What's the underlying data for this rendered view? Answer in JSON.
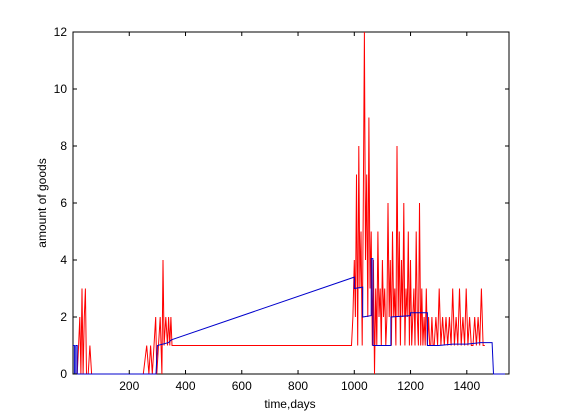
{
  "chart_data": {
    "type": "line",
    "title": "",
    "xlabel": "time,days",
    "ylabel": "amount of goods",
    "xlim": [
      0,
      1550
    ],
    "ylim": [
      0,
      12
    ],
    "xticks": [
      200,
      400,
      600,
      800,
      1000,
      1200,
      1400
    ],
    "yticks": [
      0,
      2,
      4,
      6,
      8,
      10,
      12
    ],
    "grid": false,
    "legend": "none",
    "series": [
      {
        "color": "#ff0000",
        "style": "spiky",
        "points": [
          [
            0,
            0
          ],
          [
            15,
            0
          ],
          [
            20,
            1
          ],
          [
            24,
            2
          ],
          [
            28,
            0
          ],
          [
            32,
            3
          ],
          [
            36,
            0
          ],
          [
            40,
            2
          ],
          [
            44,
            3
          ],
          [
            48,
            0
          ],
          [
            54,
            0
          ],
          [
            60,
            1
          ],
          [
            66,
            0
          ],
          [
            250,
            0
          ],
          [
            262,
            1
          ],
          [
            270,
            0
          ],
          [
            276,
            1
          ],
          [
            282,
            0
          ],
          [
            288,
            1
          ],
          [
            294,
            2
          ],
          [
            298,
            0
          ],
          [
            304,
            1
          ],
          [
            310,
            2
          ],
          [
            316,
            0
          ],
          [
            320,
            4
          ],
          [
            324,
            1
          ],
          [
            330,
            2
          ],
          [
            336,
            1
          ],
          [
            340,
            2
          ],
          [
            344,
            1
          ],
          [
            348,
            2
          ],
          [
            352,
            1
          ],
          [
            990,
            1
          ],
          [
            995,
            2
          ],
          [
            1000,
            4
          ],
          [
            1004,
            2
          ],
          [
            1008,
            7
          ],
          [
            1012,
            1
          ],
          [
            1016,
            8
          ],
          [
            1020,
            3
          ],
          [
            1024,
            5
          ],
          [
            1028,
            1
          ],
          [
            1032,
            6
          ],
          [
            1036,
            12
          ],
          [
            1040,
            4
          ],
          [
            1044,
            7
          ],
          [
            1048,
            2
          ],
          [
            1052,
            9
          ],
          [
            1056,
            3
          ],
          [
            1060,
            5
          ],
          [
            1064,
            1
          ],
          [
            1068,
            4
          ],
          [
            1072,
            0
          ],
          [
            1076,
            3
          ],
          [
            1080,
            1
          ],
          [
            1084,
            5
          ],
          [
            1088,
            2
          ],
          [
            1092,
            3
          ],
          [
            1096,
            1
          ],
          [
            1100,
            4
          ],
          [
            1104,
            2
          ],
          [
            1108,
            3
          ],
          [
            1112,
            1
          ],
          [
            1116,
            2
          ],
          [
            1120,
            6
          ],
          [
            1124,
            2
          ],
          [
            1128,
            4
          ],
          [
            1132,
            1
          ],
          [
            1136,
            5
          ],
          [
            1140,
            2
          ],
          [
            1144,
            3
          ],
          [
            1148,
            1
          ],
          [
            1152,
            8
          ],
          [
            1156,
            2
          ],
          [
            1160,
            5
          ],
          [
            1164,
            1
          ],
          [
            1168,
            4
          ],
          [
            1172,
            2
          ],
          [
            1176,
            6
          ],
          [
            1180,
            1
          ],
          [
            1184,
            3
          ],
          [
            1188,
            2
          ],
          [
            1192,
            5
          ],
          [
            1196,
            1
          ],
          [
            1200,
            4
          ],
          [
            1204,
            1
          ],
          [
            1208,
            2
          ],
          [
            1212,
            3
          ],
          [
            1216,
            1
          ],
          [
            1220,
            5
          ],
          [
            1224,
            2
          ],
          [
            1228,
            1
          ],
          [
            1232,
            6
          ],
          [
            1236,
            1
          ],
          [
            1240,
            3
          ],
          [
            1244,
            1
          ],
          [
            1248,
            2
          ],
          [
            1252,
            1
          ],
          [
            1256,
            3
          ],
          [
            1260,
            1
          ],
          [
            1264,
            2
          ],
          [
            1268,
            1
          ],
          [
            1272,
            1
          ],
          [
            1276,
            2
          ],
          [
            1280,
            1
          ],
          [
            1284,
            1
          ],
          [
            1290,
            2
          ],
          [
            1296,
            1
          ],
          [
            1302,
            3
          ],
          [
            1308,
            1
          ],
          [
            1314,
            2
          ],
          [
            1320,
            1
          ],
          [
            1326,
            2
          ],
          [
            1332,
            1
          ],
          [
            1338,
            2
          ],
          [
            1344,
            1
          ],
          [
            1350,
            3
          ],
          [
            1356,
            1
          ],
          [
            1362,
            2
          ],
          [
            1368,
            1
          ],
          [
            1374,
            3
          ],
          [
            1380,
            1
          ],
          [
            1386,
            2
          ],
          [
            1392,
            1
          ],
          [
            1398,
            3
          ],
          [
            1404,
            1
          ],
          [
            1410,
            2
          ],
          [
            1416,
            1
          ],
          [
            1422,
            1
          ],
          [
            1428,
            2
          ],
          [
            1434,
            1
          ],
          [
            1440,
            2
          ],
          [
            1446,
            1
          ],
          [
            1452,
            3
          ],
          [
            1458,
            1
          ],
          [
            1464,
            1
          ]
        ]
      },
      {
        "color": "#0000cc",
        "style": "line",
        "points": [
          [
            0,
            1
          ],
          [
            5,
            1
          ],
          [
            5,
            0
          ],
          [
            10,
            0
          ],
          [
            10,
            1
          ],
          [
            15,
            1
          ],
          [
            15,
            0
          ],
          [
            295,
            0
          ],
          [
            300,
            1
          ],
          [
            340,
            1.1
          ],
          [
            350,
            1.2
          ],
          [
            1000,
            3.4
          ],
          [
            1000,
            3
          ],
          [
            1030,
            3.05
          ],
          [
            1030,
            2
          ],
          [
            1060,
            2.05
          ],
          [
            1060,
            4.05
          ],
          [
            1066,
            4.05
          ],
          [
            1066,
            1
          ],
          [
            1100,
            1
          ],
          [
            1130,
            1
          ],
          [
            1130,
            2
          ],
          [
            1200,
            2.05
          ],
          [
            1200,
            2.15
          ],
          [
            1260,
            2.15
          ],
          [
            1260,
            1
          ],
          [
            1300,
            1
          ],
          [
            1350,
            1.05
          ],
          [
            1400,
            1.05
          ],
          [
            1450,
            1.1
          ],
          [
            1480,
            1.1
          ],
          [
            1490,
            1.1
          ],
          [
            1495,
            0
          ],
          [
            1550,
            0
          ]
        ]
      }
    ]
  }
}
